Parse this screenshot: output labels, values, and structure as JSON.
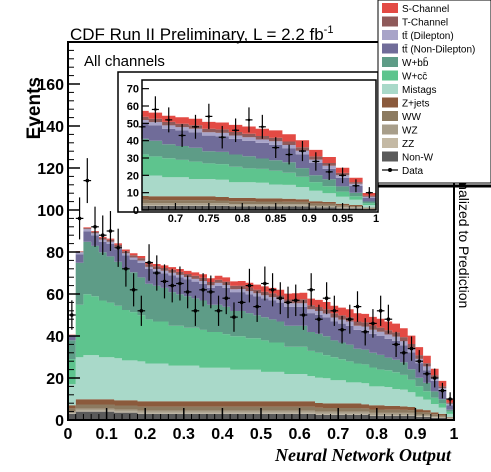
{
  "chart_data": {
    "type": "stacked_histogram",
    "title": "CDF Run II Preliminary, L = 2.2 fb",
    "title_superscript": "-1",
    "annotation": "All channels",
    "xlabel": "Neural Network Output",
    "ylabel": "Events",
    "right_label": "Normalized to Prediction",
    "xlim": [
      0,
      1
    ],
    "ylim": [
      0,
      180
    ],
    "x_ticks": [
      "0",
      "0.1",
      "0.2",
      "0.3",
      "0.4",
      "0.5",
      "0.6",
      "0.7",
      "0.8",
      "0.9",
      "1"
    ],
    "y_ticks": [
      "0",
      "20",
      "40",
      "60",
      "80",
      "100",
      "120",
      "140",
      "160"
    ],
    "grid": false,
    "legend_position": "top-right",
    "colors": {
      "S-Channel": "#e34a44",
      "T-Channel": "#8f5a5a",
      "tt (Dilepton)": "#a8a4c8",
      "tt (Non-Dilepton)": "#706c99",
      "W+bb": "#5e9c87",
      "W+cc": "#5ec48e",
      "Mistags": "#a9d9c9",
      "Z+jets": "#8b5a3c",
      "WW": "#8c7a60",
      "WZ": "#a89e8a",
      "ZZ": "#c4b9a4",
      "Non-W": "#5a5a5a"
    },
    "legend": [
      {
        "label": "S-Channel",
        "kind": "fill"
      },
      {
        "label": "T-Channel",
        "kind": "fill"
      },
      {
        "label": "tt̄ (Dilepton)",
        "kind": "fill"
      },
      {
        "label": "tt̄ (Non-Dilepton)",
        "kind": "fill"
      },
      {
        "label": "W+bb̄",
        "kind": "fill"
      },
      {
        "label": "W+cc̄",
        "kind": "fill"
      },
      {
        "label": "Mistags",
        "kind": "fill"
      },
      {
        "label": "Z+jets",
        "kind": "fill"
      },
      {
        "label": "WW",
        "kind": "fill"
      },
      {
        "label": "WZ",
        "kind": "fill"
      },
      {
        "label": "ZZ",
        "kind": "fill"
      },
      {
        "label": "Non-W",
        "kind": "fill"
      },
      {
        "label": "Data",
        "kind": "marker"
      }
    ],
    "x": [
      0.01,
      0.03,
      0.05,
      0.07,
      0.09,
      0.11,
      0.13,
      0.15,
      0.17,
      0.19,
      0.21,
      0.23,
      0.25,
      0.27,
      0.29,
      0.31,
      0.33,
      0.35,
      0.37,
      0.39,
      0.41,
      0.43,
      0.45,
      0.47,
      0.49,
      0.51,
      0.53,
      0.55,
      0.57,
      0.59,
      0.61,
      0.63,
      0.65,
      0.67,
      0.69,
      0.71,
      0.73,
      0.75,
      0.77,
      0.79,
      0.81,
      0.83,
      0.85,
      0.87,
      0.89,
      0.91,
      0.93,
      0.95,
      0.97,
      0.99
    ],
    "series": [
      {
        "name": "Non-W",
        "values": [
          3,
          4,
          4,
          4,
          4,
          4,
          3.5,
          3.5,
          3.5,
          3,
          3,
          3,
          3,
          3,
          3,
          3,
          3,
          3,
          3,
          3,
          3,
          3,
          3,
          3,
          3,
          3,
          3,
          3,
          3,
          3,
          3,
          3,
          2.5,
          2.5,
          2.5,
          2.5,
          2.5,
          2.5,
          2.5,
          2,
          2,
          2,
          2,
          2,
          2,
          1.5,
          1.5,
          1,
          1,
          0.5
        ]
      },
      {
        "name": "ZZ",
        "values": [
          0.3,
          0.4,
          0.4,
          0.4,
          0.4,
          0.4,
          0.4,
          0.4,
          0.4,
          0.4,
          0.4,
          0.4,
          0.4,
          0.4,
          0.4,
          0.4,
          0.4,
          0.4,
          0.4,
          0.4,
          0.4,
          0.4,
          0.4,
          0.4,
          0.4,
          0.4,
          0.4,
          0.4,
          0.4,
          0.4,
          0.4,
          0.4,
          0.4,
          0.4,
          0.4,
          0.4,
          0.4,
          0.4,
          0.4,
          0.4,
          0.4,
          0.4,
          0.4,
          0.4,
          0.4,
          0.3,
          0.3,
          0.3,
          0.2,
          0.1
        ]
      },
      {
        "name": "WZ",
        "values": [
          0.7,
          1,
          1,
          1,
          1,
          1,
          1,
          1,
          1,
          1,
          1,
          1,
          1,
          1,
          1,
          1,
          1,
          1,
          1,
          1,
          1,
          1,
          1,
          1,
          1,
          1,
          1,
          1,
          1,
          1,
          1,
          1,
          1,
          1,
          1,
          1,
          1,
          1,
          1,
          1,
          1,
          1,
          1,
          1,
          1,
          0.8,
          0.8,
          0.6,
          0.4,
          0.2
        ]
      },
      {
        "name": "WW",
        "values": [
          1.5,
          2,
          2,
          2,
          2,
          2,
          2,
          2,
          2,
          2,
          2,
          2,
          2,
          2,
          2,
          2,
          2,
          2,
          2,
          2,
          2,
          2,
          2,
          2,
          2,
          2,
          2,
          2,
          2,
          2,
          2,
          2,
          2,
          1.8,
          1.8,
          1.8,
          1.8,
          1.8,
          1.6,
          1.6,
          1.6,
          1.5,
          1.5,
          1.4,
          1.3,
          1.2,
          1,
          0.8,
          0.6,
          0.3
        ]
      },
      {
        "name": "Z+jets",
        "values": [
          1.5,
          2.5,
          2.5,
          2.5,
          2.5,
          2.5,
          2.5,
          2.5,
          2.5,
          2.5,
          2.5,
          2.5,
          2.5,
          2.5,
          2.5,
          2.5,
          2.5,
          2.5,
          2.5,
          2.5,
          2.5,
          2.5,
          2.5,
          2.5,
          2.5,
          2.5,
          2.5,
          2.5,
          2.5,
          2.5,
          2.5,
          2.5,
          2.2,
          2.2,
          2.2,
          2.2,
          2.2,
          2.2,
          2,
          2,
          2,
          1.8,
          1.8,
          1.7,
          1.5,
          1.3,
          1.1,
          0.9,
          0.7,
          0.3
        ]
      },
      {
        "name": "Mistags",
        "values": [
          10,
          20,
          21,
          21,
          20,
          20,
          20,
          19,
          19,
          19,
          18,
          18,
          18,
          17,
          17,
          17,
          17,
          16,
          16,
          16,
          16,
          15,
          15,
          15,
          15,
          14,
          14,
          14,
          13,
          13,
          13,
          12,
          12,
          12,
          11,
          11,
          10,
          10,
          10,
          9,
          9,
          9,
          8,
          8,
          7,
          6,
          5,
          4,
          3,
          1.5
        ]
      },
      {
        "name": "W+cc",
        "values": [
          12,
          25,
          29,
          28,
          27,
          26,
          25,
          24,
          23,
          22,
          21,
          20,
          20,
          19,
          19,
          18,
          18,
          18,
          17,
          17,
          16,
          16,
          16,
          15,
          15,
          15,
          14,
          14,
          13,
          13,
          13,
          12,
          12,
          11,
          11,
          10,
          10,
          9,
          9,
          9,
          8,
          8,
          8,
          7,
          6,
          5,
          4,
          3,
          2,
          1
        ]
      },
      {
        "name": "W+bb",
        "values": [
          9,
          20,
          25,
          24,
          23,
          22,
          21,
          20,
          19,
          18,
          17,
          17,
          16,
          16,
          15,
          15,
          14,
          14,
          13,
          13,
          13,
          12,
          12,
          12,
          11,
          11,
          11,
          10,
          10,
          10,
          10,
          9,
          9,
          9,
          8,
          8,
          8,
          7,
          7,
          7,
          7,
          6,
          6,
          6,
          5,
          4,
          4,
          3,
          2,
          1
        ]
      },
      {
        "name": "tt (Non-Dilepton)",
        "values": [
          2,
          4,
          5,
          5,
          5,
          6,
          6,
          6,
          6,
          7,
          7,
          7,
          7,
          8,
          8,
          8,
          8,
          8,
          8,
          9,
          9,
          9,
          9,
          9,
          9,
          9,
          9,
          9,
          9,
          9,
          9,
          9,
          9,
          9,
          9,
          9,
          9,
          9,
          9,
          9,
          9,
          9,
          9,
          8,
          8,
          7,
          6,
          5,
          4,
          2
        ]
      },
      {
        "name": "tt (Dilepton)",
        "values": [
          0.5,
          1,
          1,
          1,
          1,
          1,
          1,
          1,
          1,
          1,
          1,
          1,
          1.2,
          1.2,
          1.2,
          1.2,
          1.3,
          1.3,
          1.3,
          1.4,
          1.4,
          1.4,
          1.5,
          1.5,
          1.5,
          1.5,
          1.6,
          1.6,
          1.7,
          1.7,
          1.7,
          1.8,
          1.8,
          1.8,
          1.9,
          1.9,
          2,
          2,
          2,
          2,
          2,
          2,
          2,
          2,
          2,
          2,
          1.8,
          1.5,
          1.2,
          0.8
        ]
      },
      {
        "name": "T-Channel",
        "values": [
          0.1,
          0.3,
          0.5,
          0.7,
          0.8,
          0.9,
          1,
          1,
          1.1,
          1.2,
          1.2,
          1.3,
          1.3,
          1.4,
          1.4,
          1.4,
          1.5,
          1.5,
          1.5,
          1.5,
          1.6,
          1.6,
          1.6,
          1.7,
          1.7,
          1.7,
          1.8,
          1.8,
          1.8,
          1.8,
          1.9,
          1.9,
          1.9,
          2,
          2,
          2,
          2,
          2,
          2,
          2,
          2,
          2,
          2,
          2,
          2,
          1.8,
          1.6,
          1.3,
          1,
          0.6
        ]
      },
      {
        "name": "S-Channel",
        "values": [
          0.1,
          0.2,
          0.3,
          0.4,
          0.5,
          0.6,
          0.7,
          0.8,
          0.9,
          1,
          1,
          1.1,
          1.2,
          1.3,
          1.4,
          1.5,
          1.6,
          1.7,
          1.8,
          1.9,
          2,
          2.1,
          2.2,
          2.3,
          2.4,
          2.5,
          2.6,
          2.7,
          2.8,
          3,
          3.1,
          3.2,
          3.4,
          3.5,
          3.6,
          3.7,
          3.8,
          3.9,
          4,
          4.1,
          4.2,
          4.2,
          4.2,
          4.2,
          4,
          3.8,
          3.5,
          3,
          2.5,
          1.5
        ]
      }
    ],
    "data": {
      "y": [
        50,
        96,
        114,
        92,
        88,
        90,
        82,
        72,
        62,
        52,
        75,
        70,
        66,
        64,
        65,
        61,
        52,
        62,
        61,
        52,
        58,
        49,
        56,
        64,
        54,
        65,
        62,
        58,
        56,
        57,
        50,
        62,
        48,
        58,
        52,
        43,
        48,
        54,
        42,
        46,
        52,
        48,
        36,
        32,
        34,
        28,
        22,
        20,
        14,
        10
      ],
      "err": [
        7,
        10,
        10.7,
        9.6,
        9.4,
        9.5,
        9.1,
        8.5,
        7.9,
        7.2,
        8.7,
        8.4,
        8.1,
        8,
        8.1,
        7.8,
        7.2,
        7.9,
        7.8,
        7.2,
        7.6,
        7,
        7.5,
        8,
        7.3,
        8.1,
        7.9,
        7.6,
        7.5,
        7.5,
        7.1,
        7.9,
        6.9,
        7.6,
        7.2,
        6.6,
        6.9,
        7.3,
        6.5,
        6.8,
        7.2,
        6.9,
        6,
        5.7,
        5.8,
        5.3,
        4.7,
        4.5,
        3.7,
        3.2
      ]
    },
    "inset": {
      "xlim": [
        0.65,
        1
      ],
      "ylim": [
        0,
        75
      ],
      "x_ticks": [
        "0.7",
        "0.75",
        "0.8",
        "0.85",
        "0.9",
        "0.95",
        "1"
      ],
      "y_ticks": [
        "0",
        "10",
        "20",
        "30",
        "40",
        "50",
        "60",
        "70"
      ]
    }
  }
}
